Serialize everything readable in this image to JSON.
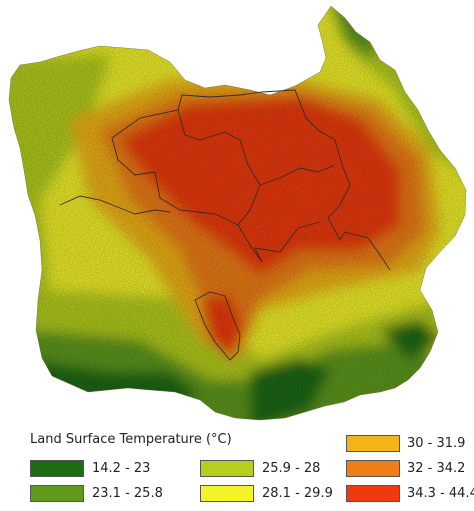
{
  "legend": {
    "title": "Land Surface Temperature (°C)",
    "classes": [
      {
        "label": "14.2 - 23",
        "color": "#1e6b12"
      },
      {
        "label": "23.1 - 25.8",
        "color": "#5f9a1a"
      },
      {
        "label": "25.9 - 28",
        "color": "#b5cf1c"
      },
      {
        "label": "28.1 - 29.9",
        "color": "#f3f32a"
      },
      {
        "label": "30 - 31.9",
        "color": "#f2b416"
      },
      {
        "label": "32 - 34.2",
        "color": "#f07e16"
      },
      {
        "label": "34.3 - 44.4",
        "color": "#ef3a10"
      }
    ]
  },
  "colors": {
    "boundary": "#3a2a1e"
  }
}
